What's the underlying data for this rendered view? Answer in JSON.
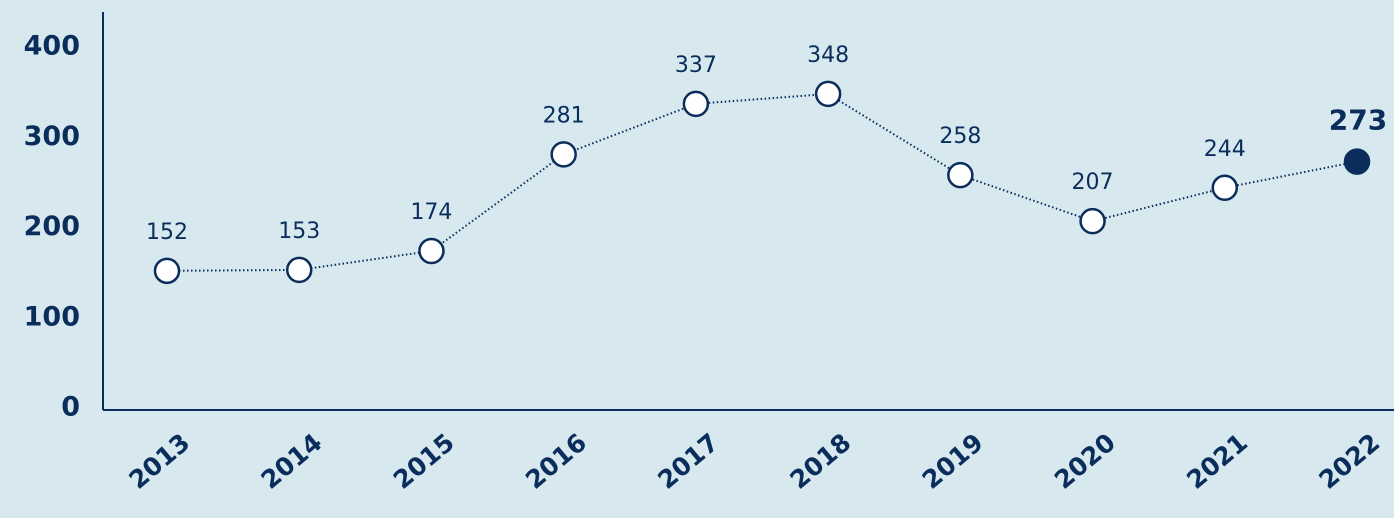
{
  "chart_data": {
    "type": "line",
    "categories": [
      "2013",
      "2014",
      "2015",
      "2016",
      "2017",
      "2018",
      "2019",
      "2020",
      "2021",
      "2022"
    ],
    "series": [
      {
        "name": null,
        "color": "#0b2d5c",
        "values": [
          152,
          153,
          174,
          281,
          337,
          348,
          258,
          207,
          244,
          273
        ]
      }
    ],
    "ylim": [
      0,
      400
    ],
    "yticks": [
      0,
      100,
      200,
      300,
      400
    ],
    "grid": false
  }
}
